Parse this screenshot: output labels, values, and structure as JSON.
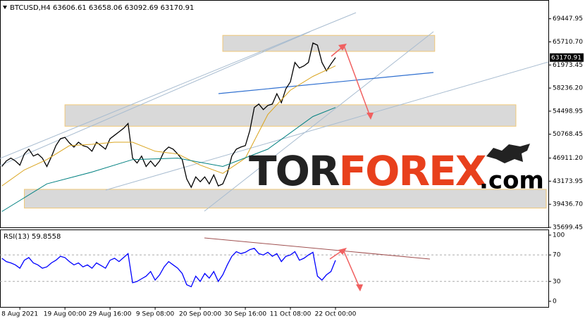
{
  "chart_data": [
    {
      "type": "line",
      "title": "BTCUSD,H4  63606.61 63658.06 63092.69 63170.91",
      "xlim": [
        -0.4,
        121.2
      ],
      "ylim": [
        35699.45,
        72140
      ],
      "yticks": [
        69447.95,
        {
          "value": 65710.7,
          "label": "65710.70"
        },
        61973.45,
        {
          "value": 58236.2,
          "label": "58236.20"
        },
        54498.95,
        50768.45,
        {
          "value": 46911.2,
          "label": "46911.20"
        },
        43173.95,
        {
          "value": 39436.7,
          "label": "39436.70"
        },
        35699.45
      ],
      "last_price": 63170.91,
      "series": [
        {
          "color": "#000000",
          "values": [
            45550,
            46450,
            46900,
            46450,
            45770,
            47570,
            48350,
            47230,
            47570,
            46900,
            45550,
            47120,
            48920,
            50040,
            50260,
            49360,
            48690,
            49480,
            48920,
            48690,
            48020,
            49480,
            48920,
            48350,
            50040,
            50600,
            51160,
            51720,
            52510,
            46900,
            46110,
            47230,
            45550,
            46450,
            45550,
            46450,
            48020,
            48690,
            48350,
            47570,
            46670,
            43530,
            42180,
            43870,
            43080,
            43870,
            42740,
            44200,
            42410,
            42740,
            44430,
            47230,
            48350,
            48690,
            48920,
            51380,
            55090,
            55650,
            54750,
            55420,
            55650,
            57330,
            55870,
            58120,
            59240,
            62380,
            61480,
            61820,
            62380,
            65520,
            65180,
            62380,
            61030,
            62150,
            63170.91
          ]
        },
        {
          "color": "#daa520",
          "x": [
            0,
            5,
            10,
            15,
            20,
            25,
            29,
            34,
            39,
            44,
            49,
            54,
            59,
            64,
            69,
            74
          ],
          "values": [
            42410,
            44990,
            46670,
            48920,
            49140,
            49480,
            49480,
            48020,
            47570,
            45770,
            44430,
            46900,
            53960,
            57890,
            60130,
            61820
          ]
        },
        {
          "color": "#008080",
          "x": [
            0,
            10,
            20,
            29,
            39,
            49,
            59,
            69,
            74
          ],
          "values": [
            38260,
            42740,
            44650,
            46670,
            46900,
            45550,
            48350,
            53630,
            55090
          ]
        }
      ],
      "zones": [
        {
          "start": 49,
          "end": 96,
          "low": 64170,
          "high": 66760
        },
        {
          "start": 14,
          "end": 114,
          "low": 52060,
          "high": 55530
        },
        {
          "start": 5,
          "end": 121,
          "low": 38820,
          "high": 41850
        }
      ],
      "watermark": [
        "TOR",
        "FOREX",
        ".com"
      ]
    },
    {
      "type": "line",
      "title": "RSI(13) 59.8558",
      "xlim": [
        -0.4,
        121.2
      ],
      "ylim": [
        -8.5,
        107.4
      ],
      "yticks": [
        100,
        70,
        30,
        0
      ],
      "levels": [
        70,
        30
      ],
      "categories": [
        null,
        null,
        null,
        null,
        "8 Aug 2021",
        null,
        null,
        null,
        null,
        null,
        null,
        null,
        null,
        null,
        "19 Aug 00:00",
        null,
        null,
        null,
        null,
        null,
        null,
        null,
        null,
        null,
        "29 Aug 16:00",
        null,
        null,
        null,
        null,
        null,
        null,
        null,
        null,
        null,
        "9 Sep 08:00",
        null,
        null,
        null,
        null,
        null,
        null,
        null,
        null,
        null,
        "20 Sep 00:00",
        null,
        null,
        null,
        null,
        null,
        null,
        null,
        null,
        null,
        "30 Sep 16:00",
        null,
        null,
        null,
        null,
        null,
        null,
        null,
        null,
        null,
        "11 Oct 08:00",
        null,
        null,
        null,
        null,
        null,
        null,
        null,
        null,
        null,
        "22 Oct 00:00"
      ],
      "series": [
        {
          "color": "#0000ff",
          "values": [
            65,
            60,
            58,
            55,
            50,
            62,
            66,
            58,
            55,
            50,
            52,
            58,
            62,
            68,
            66,
            60,
            55,
            58,
            52,
            55,
            50,
            58,
            54,
            50,
            62,
            65,
            60,
            66,
            72,
            28,
            30,
            34,
            38,
            45,
            32,
            40,
            52,
            60,
            55,
            50,
            42,
            25,
            22,
            38,
            30,
            42,
            35,
            45,
            30,
            40,
            55,
            68,
            75,
            72,
            74,
            78,
            80,
            72,
            70,
            74,
            68,
            72,
            60,
            68,
            70,
            75,
            62,
            65,
            70,
            74,
            38,
            32,
            40,
            45,
            62
          ]
        }
      ]
    }
  ]
}
